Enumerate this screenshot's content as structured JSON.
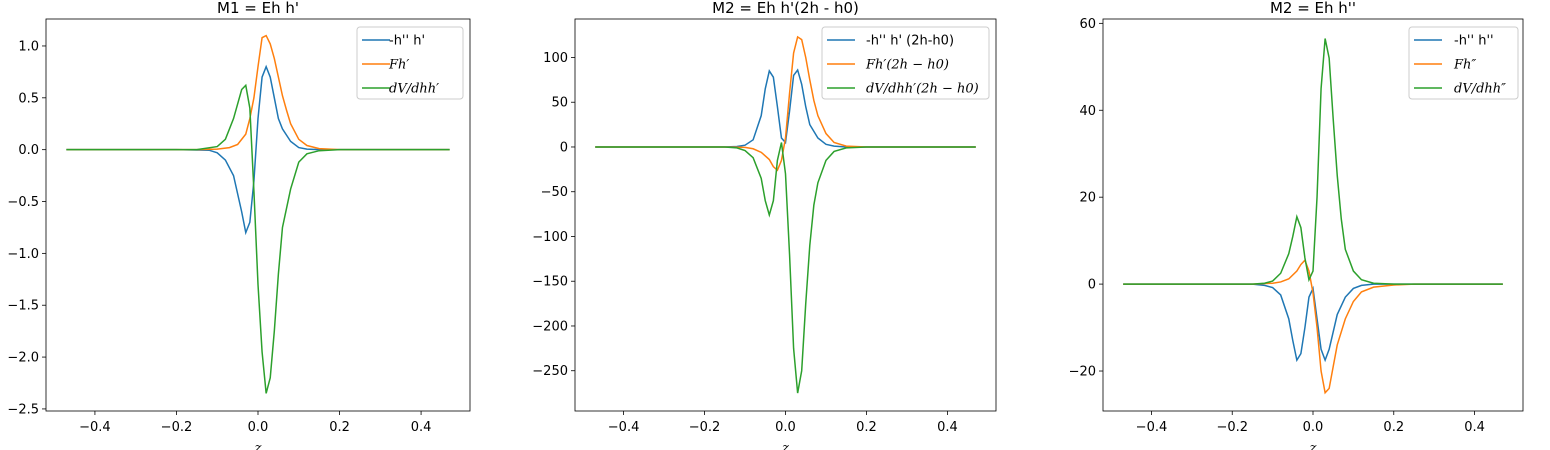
{
  "chart_data": [
    {
      "type": "line",
      "title": "M1 = Eh h'",
      "xlabel": "z",
      "ylabel": "",
      "xlim": [
        -0.52,
        0.52
      ],
      "ylim": [
        -2.52,
        1.26
      ],
      "grid": false,
      "legend_position": "top-right",
      "xticks": [
        -0.4,
        -0.2,
        0.0,
        0.2,
        0.4
      ],
      "xtick_labels": [
        "−0.4",
        "−0.2",
        "0.0",
        "0.2",
        "0.4"
      ],
      "yticks": [
        -2.5,
        -2.0,
        -1.5,
        -1.0,
        -0.5,
        0.0,
        0.5,
        1.0
      ],
      "ytick_labels": [
        "−2.5",
        "−2.0",
        "−1.5",
        "−1.0",
        "−0.5",
        "0.0",
        "0.5",
        "1.0"
      ],
      "series": [
        {
          "name": "-h'' h'",
          "legend_style": "plain",
          "color": "#1f77b4",
          "x": [
            -0.47,
            -0.2,
            -0.12,
            -0.1,
            -0.08,
            -0.06,
            -0.04,
            -0.03,
            -0.02,
            -0.01,
            0.0,
            0.01,
            0.02,
            0.03,
            0.04,
            0.05,
            0.06,
            0.08,
            0.1,
            0.12,
            0.15,
            0.2,
            0.47
          ],
          "y": [
            0,
            0,
            -0.005,
            -0.03,
            -0.1,
            -0.25,
            -0.6,
            -0.8,
            -0.7,
            -0.3,
            0.3,
            0.7,
            0.8,
            0.7,
            0.5,
            0.3,
            0.2,
            0.08,
            0.02,
            0.005,
            0,
            0,
            0
          ]
        },
        {
          "name": "Fh′",
          "legend_style": "italic",
          "color": "#ff7f0e",
          "x": [
            -0.47,
            -0.15,
            -0.1,
            -0.07,
            -0.05,
            -0.03,
            -0.02,
            -0.01,
            0.0,
            0.01,
            0.02,
            0.03,
            0.04,
            0.05,
            0.06,
            0.07,
            0.08,
            0.1,
            0.12,
            0.15,
            0.2,
            0.47
          ],
          "y": [
            0,
            0,
            0.005,
            0.02,
            0.05,
            0.15,
            0.3,
            0.5,
            0.8,
            1.08,
            1.1,
            1.02,
            0.88,
            0.7,
            0.52,
            0.38,
            0.25,
            0.1,
            0.04,
            0.01,
            0,
            0
          ]
        },
        {
          "name": "dV/dhh′",
          "legend_style": "italic",
          "color": "#2ca02c",
          "x": [
            -0.47,
            -0.15,
            -0.1,
            -0.08,
            -0.06,
            -0.04,
            -0.03,
            -0.02,
            -0.01,
            0.0,
            0.01,
            0.02,
            0.03,
            0.04,
            0.05,
            0.06,
            0.08,
            0.1,
            0.12,
            0.15,
            0.2,
            0.47
          ],
          "y": [
            0,
            0,
            0.03,
            0.1,
            0.3,
            0.58,
            0.62,
            0.4,
            -0.4,
            -1.3,
            -1.95,
            -2.35,
            -2.2,
            -1.75,
            -1.2,
            -0.75,
            -0.38,
            -0.12,
            -0.04,
            -0.01,
            0,
            0
          ]
        }
      ]
    },
    {
      "type": "line",
      "title": "M2 = Eh h'(2h - h0)",
      "xlabel": "z",
      "ylabel": "",
      "xlim": [
        -0.52,
        0.52
      ],
      "ylim": [
        -295,
        143
      ],
      "grid": false,
      "legend_position": "top-right",
      "xticks": [
        -0.4,
        -0.2,
        0.0,
        0.2,
        0.4
      ],
      "xtick_labels": [
        "−0.4",
        "−0.2",
        "0.0",
        "0.2",
        "0.4"
      ],
      "yticks": [
        -250,
        -200,
        -150,
        -100,
        -50,
        0,
        50,
        100
      ],
      "ytick_labels": [
        "−250",
        "−200",
        "−150",
        "−100",
        "−50",
        "0",
        "50",
        "100"
      ],
      "series": [
        {
          "name": "-h'' h' (2h-h0)",
          "legend_style": "plain",
          "color": "#1f77b4",
          "x": [
            -0.47,
            -0.15,
            -0.12,
            -0.1,
            -0.08,
            -0.06,
            -0.05,
            -0.04,
            -0.03,
            -0.02,
            -0.01,
            0.0,
            0.01,
            0.02,
            0.03,
            0.04,
            0.05,
            0.06,
            0.08,
            0.1,
            0.12,
            0.15,
            0.2,
            0.47
          ],
          "y": [
            0,
            0,
            0.5,
            2,
            8,
            35,
            65,
            85,
            78,
            45,
            10,
            5,
            40,
            80,
            86,
            70,
            45,
            25,
            10,
            3,
            1,
            0,
            0,
            0
          ]
        },
        {
          "name": "Fh′(2h − h0)",
          "legend_style": "italic",
          "color": "#ff7f0e",
          "x": [
            -0.47,
            -0.15,
            -0.1,
            -0.08,
            -0.06,
            -0.04,
            -0.03,
            -0.02,
            -0.01,
            0.0,
            0.01,
            0.02,
            0.03,
            0.04,
            0.05,
            0.06,
            0.07,
            0.08,
            0.1,
            0.12,
            0.15,
            0.2,
            0.47
          ],
          "y": [
            0,
            0,
            -0.5,
            -2,
            -6,
            -14,
            -22,
            -26,
            -15,
            10,
            60,
            105,
            123,
            120,
            100,
            75,
            52,
            35,
            15,
            5,
            1,
            0,
            0
          ]
        },
        {
          "name": "dV/dhh′(2h − h0)",
          "legend_style": "italic",
          "color": "#2ca02c",
          "x": [
            -0.47,
            -0.15,
            -0.12,
            -0.1,
            -0.08,
            -0.06,
            -0.05,
            -0.04,
            -0.03,
            -0.02,
            -0.01,
            0.0,
            0.01,
            0.02,
            0.03,
            0.04,
            0.05,
            0.06,
            0.07,
            0.08,
            0.1,
            0.12,
            0.15,
            0.2,
            0.47
          ],
          "y": [
            0,
            0,
            -1,
            -4,
            -12,
            -35,
            -60,
            -76,
            -60,
            -15,
            5,
            -30,
            -120,
            -225,
            -275,
            -250,
            -175,
            -110,
            -65,
            -40,
            -15,
            -5,
            -1,
            0,
            0
          ]
        }
      ]
    },
    {
      "type": "line",
      "title": "M2 = Eh h''",
      "xlabel": "z",
      "ylabel": "",
      "xlim": [
        -0.52,
        0.52
      ],
      "ylim": [
        -29.2,
        61
      ],
      "grid": false,
      "legend_position": "top-right",
      "xticks": [
        -0.4,
        -0.2,
        0.0,
        0.2,
        0.4
      ],
      "xtick_labels": [
        "−0.4",
        "−0.2",
        "0.0",
        "0.2",
        "0.4"
      ],
      "yticks": [
        -20,
        0,
        20,
        40,
        60
      ],
      "ytick_labels": [
        "−20",
        "0",
        "20",
        "40",
        "60"
      ],
      "series": [
        {
          "name": "-h'' h''",
          "legend_style": "plain",
          "color": "#1f77b4",
          "x": [
            -0.47,
            -0.15,
            -0.12,
            -0.1,
            -0.08,
            -0.06,
            -0.05,
            -0.04,
            -0.03,
            -0.02,
            -0.01,
            0.0,
            0.01,
            0.02,
            0.03,
            0.04,
            0.05,
            0.06,
            0.08,
            0.1,
            0.12,
            0.15,
            0.2,
            0.47
          ],
          "y": [
            0,
            0,
            -0.3,
            -0.8,
            -2.5,
            -8,
            -13,
            -17.5,
            -16,
            -10,
            -3,
            -1,
            -8,
            -15,
            -17.5,
            -15,
            -11,
            -7,
            -3,
            -1,
            -0.3,
            0,
            0,
            0
          ]
        },
        {
          "name": "Fh″",
          "legend_style": "italic",
          "color": "#ff7f0e",
          "x": [
            -0.47,
            -0.15,
            -0.1,
            -0.08,
            -0.06,
            -0.04,
            -0.03,
            -0.02,
            -0.01,
            0.0,
            0.01,
            0.02,
            0.03,
            0.04,
            0.05,
            0.06,
            0.08,
            0.1,
            0.12,
            0.15,
            0.2,
            0.25,
            0.47
          ],
          "y": [
            0,
            0,
            0.2,
            0.5,
            1.2,
            3,
            4.5,
            5.5,
            3,
            -2,
            -10,
            -20,
            -25,
            -24,
            -19,
            -14,
            -8,
            -4,
            -1.8,
            -0.7,
            -0.2,
            0,
            0
          ]
        },
        {
          "name": "dV/dhh″",
          "legend_style": "italic",
          "color": "#2ca02c",
          "x": [
            -0.47,
            -0.15,
            -0.12,
            -0.1,
            -0.08,
            -0.06,
            -0.05,
            -0.04,
            -0.03,
            -0.02,
            -0.01,
            0.0,
            0.01,
            0.02,
            0.03,
            0.04,
            0.05,
            0.06,
            0.07,
            0.08,
            0.1,
            0.12,
            0.15,
            0.2,
            0.47
          ],
          "y": [
            0,
            0,
            0.2,
            0.7,
            2.5,
            7,
            11,
            15.5,
            13,
            6,
            1,
            3,
            20,
            45,
            56.5,
            52,
            38,
            25,
            15,
            8,
            3,
            1,
            0.2,
            0,
            0
          ]
        }
      ]
    }
  ]
}
